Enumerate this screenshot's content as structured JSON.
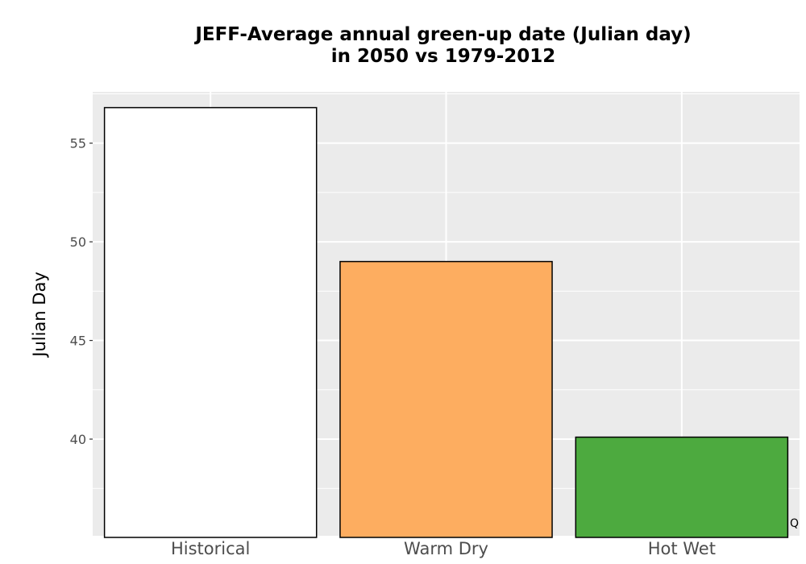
{
  "chart_data": {
    "type": "bar",
    "title_lines": [
      "JEFF-Average annual green-up date (Julian day)",
      "in 2050 vs 1979-2012"
    ],
    "ylabel": "Julian Day",
    "xlabel": "",
    "categories": [
      "Historical",
      "Warm Dry",
      "Hot Wet"
    ],
    "values": [
      56.8,
      49.0,
      40.1
    ],
    "colors": [
      "#ffffff",
      "#fdad60",
      "#4daa3f"
    ],
    "ylim": [
      35.1,
      57.6
    ],
    "yticks": [
      40,
      45,
      50,
      55
    ],
    "grid": true,
    "legend": "none",
    "corner_note": "Q"
  }
}
